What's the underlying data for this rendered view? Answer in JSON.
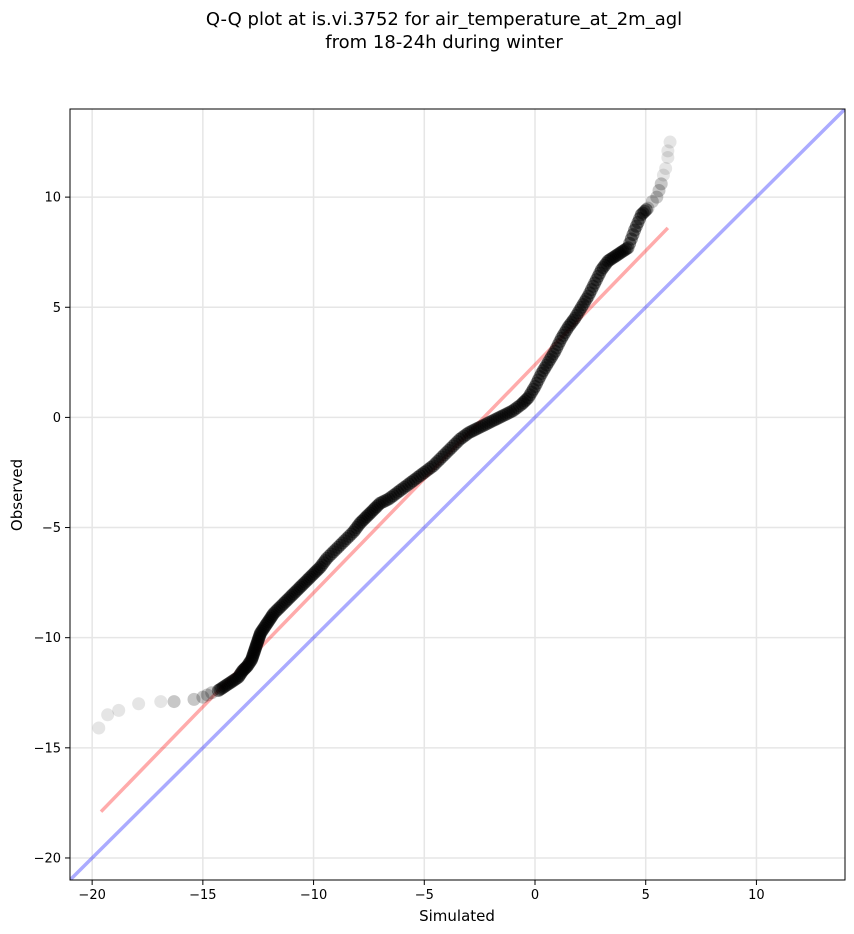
{
  "chart_data": {
    "type": "scatter",
    "title_line1": "Q-Q plot at is.vi.3752 for air_temperature_at_2m_agl",
    "title_line2": "from 18-24h during winter",
    "xlabel": "Simulated",
    "ylabel": "Observed",
    "xlim": [
      -21,
      14
    ],
    "ylim": [
      -21,
      14
    ],
    "xticks": [
      -20,
      -15,
      -10,
      -5,
      0,
      5,
      10
    ],
    "yticks": [
      -20,
      -15,
      -10,
      -5,
      0,
      5,
      10
    ],
    "xtick_labels": [
      "−20",
      "−15",
      "−10",
      "−5",
      "0",
      "5",
      "10"
    ],
    "ytick_labels": [
      "−20",
      "−15",
      "−10",
      "−5",
      "0",
      "5",
      "10"
    ],
    "grid": true,
    "point_color": "#000000",
    "fit_line_color": "#ff0000",
    "identity_line_color": "#0000ff",
    "fit_line": {
      "x": [
        -19.6,
        6.0
      ],
      "y": [
        -17.9,
        8.6
      ]
    },
    "identity_line": {
      "x": [
        -21,
        14
      ],
      "y": [
        -21,
        14
      ]
    },
    "quantile_points": {
      "x": [
        -19.7,
        -19.3,
        -18.8,
        -17.9,
        -16.9,
        -16.3,
        -15.4,
        -15.0,
        -14.8,
        -14.6,
        -14.3,
        -14.0,
        -13.7,
        -13.4,
        -13.2,
        -13.0,
        -12.8,
        -12.7,
        -12.6,
        -12.5,
        -12.4,
        -12.2,
        -12.0,
        -11.8,
        -11.5,
        -11.2,
        -10.9,
        -10.6,
        -10.3,
        -10.0,
        -9.7,
        -9.4,
        -9.0,
        -8.6,
        -8.2,
        -7.9,
        -7.6,
        -7.3,
        -7.0,
        -6.6,
        -6.2,
        -5.8,
        -5.4,
        -5.0,
        -4.6,
        -4.2,
        -3.8,
        -3.4,
        -3.0,
        -2.6,
        -2.2,
        -1.8,
        -1.4,
        -1.0,
        -0.6,
        -0.3,
        0.0,
        0.3,
        0.6,
        0.9,
        1.2,
        1.5,
        1.8,
        2.1,
        2.4,
        2.7,
        3.0,
        3.3,
        3.6,
        3.9,
        4.2,
        4.5,
        4.8,
        5.1,
        5.3,
        5.5,
        5.6,
        5.7,
        5.8,
        5.9,
        6.0,
        6.0,
        6.1
      ],
      "y": [
        -14.1,
        -13.5,
        -13.3,
        -13.0,
        -12.9,
        -12.9,
        -12.8,
        -12.7,
        -12.6,
        -12.5,
        -12.4,
        -12.2,
        -12.0,
        -11.8,
        -11.5,
        -11.3,
        -11.0,
        -10.7,
        -10.4,
        -10.1,
        -9.8,
        -9.5,
        -9.2,
        -8.9,
        -8.6,
        -8.3,
        -8.0,
        -7.7,
        -7.4,
        -7.1,
        -6.8,
        -6.4,
        -6.0,
        -5.6,
        -5.2,
        -4.8,
        -4.5,
        -4.2,
        -3.9,
        -3.7,
        -3.4,
        -3.1,
        -2.8,
        -2.5,
        -2.2,
        -1.8,
        -1.4,
        -1.0,
        -0.7,
        -0.5,
        -0.3,
        -0.1,
        0.1,
        0.3,
        0.6,
        0.9,
        1.4,
        2.0,
        2.5,
        3.0,
        3.6,
        4.1,
        4.5,
        5.0,
        5.5,
        6.1,
        6.7,
        7.1,
        7.3,
        7.5,
        7.7,
        8.5,
        9.2,
        9.5,
        9.8,
        10.0,
        10.3,
        10.6,
        11.0,
        11.3,
        11.8,
        12.1,
        12.5
      ]
    }
  }
}
